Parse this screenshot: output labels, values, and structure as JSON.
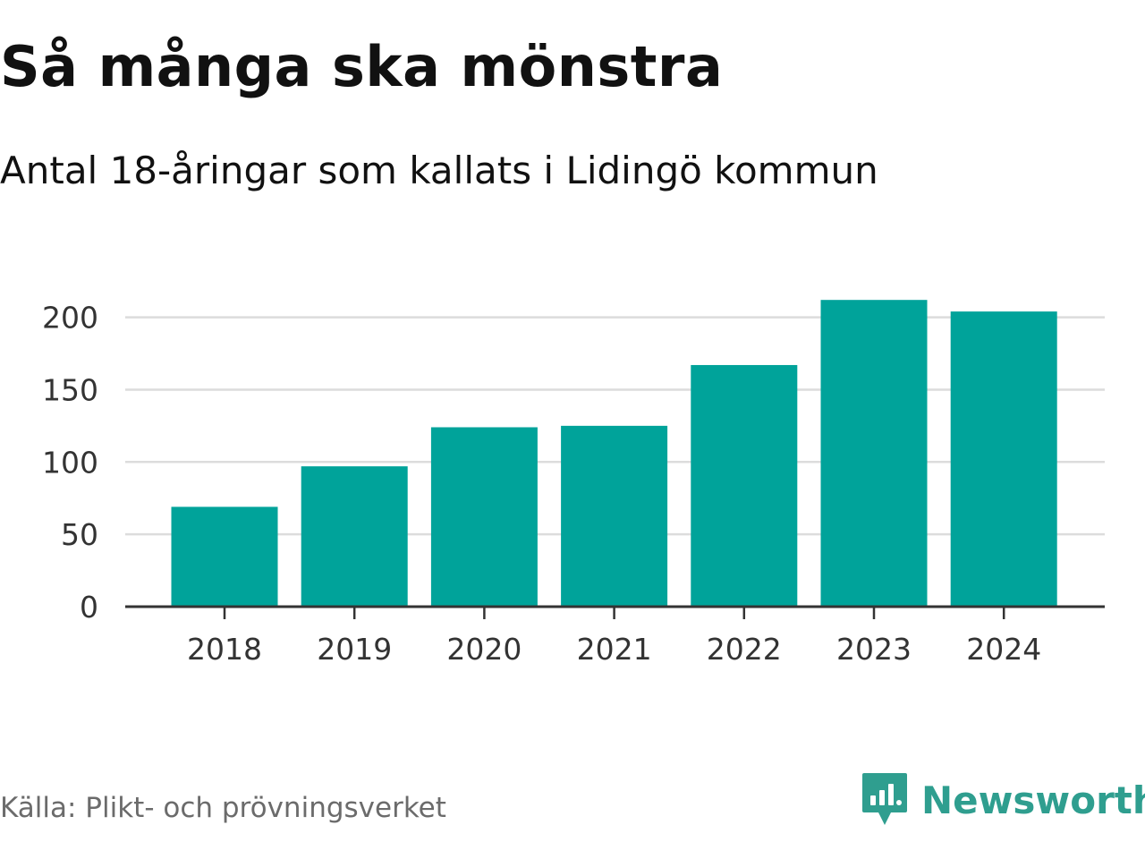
{
  "header": {
    "title": "Så många ska mönstra",
    "subtitle": "Antal 18-åringar som kallats i Lidingö kommun"
  },
  "footer": {
    "source": "Källa: Plikt- och prövningsverket",
    "brand": "Newsworthy",
    "brand_icon": "newsworthy-logo-icon"
  },
  "colors": {
    "bar": "#00a39a",
    "grid": "#dcdcdc",
    "axis": "#333333",
    "brand": "#2f9e8f"
  },
  "chart_data": {
    "type": "bar",
    "title": "Så många ska mönstra",
    "subtitle": "Antal 18-åringar som kallats i Lidingö kommun",
    "categories": [
      "2018",
      "2019",
      "2020",
      "2021",
      "2022",
      "2023",
      "2024"
    ],
    "values": [
      69,
      97,
      124,
      125,
      167,
      212,
      204
    ],
    "yticks": [
      0,
      50,
      100,
      150,
      200
    ],
    "ylim": [
      0,
      215
    ],
    "xlabel": "",
    "ylabel": "",
    "grid": true
  }
}
